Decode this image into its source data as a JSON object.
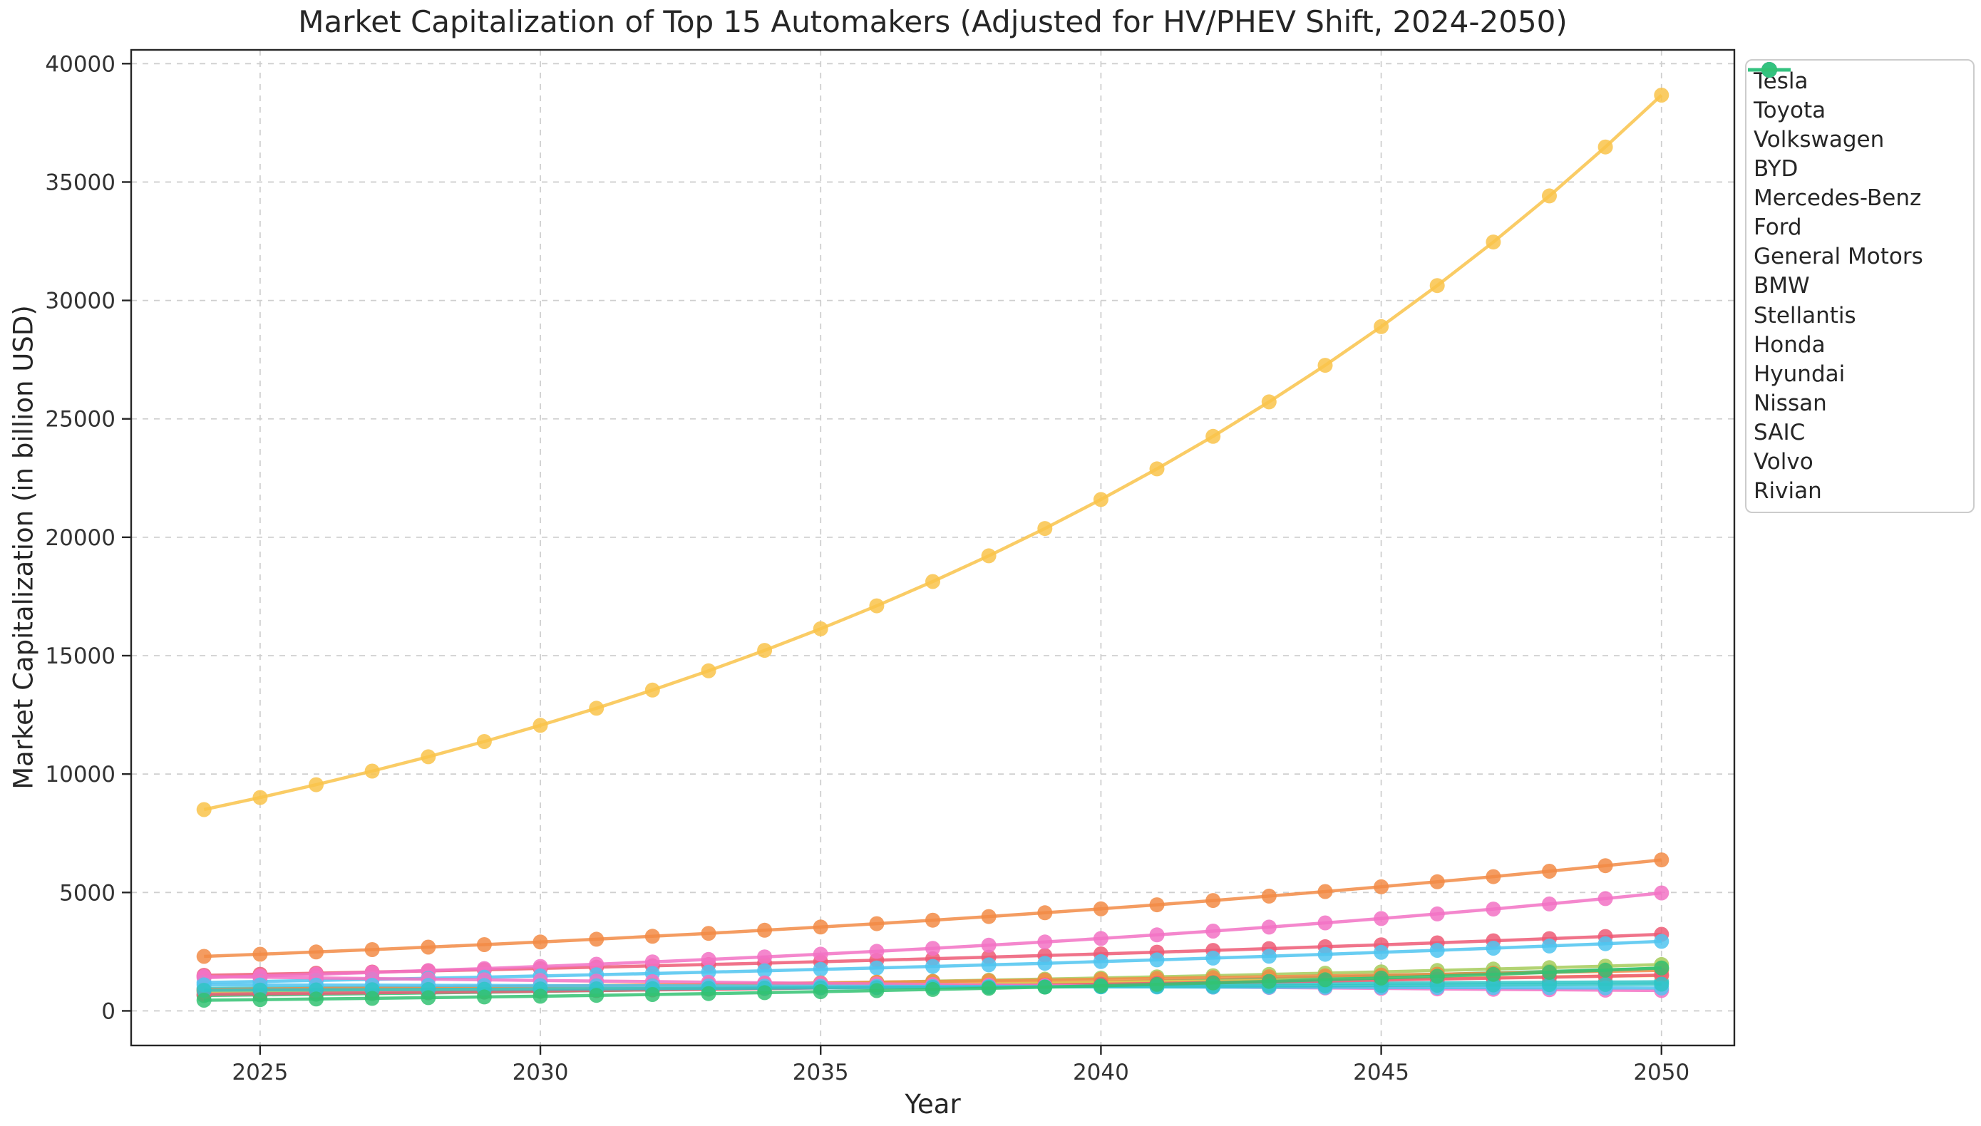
{
  "figure": {
    "title": "Market Capitalization of Top 15 Automakers (Adjusted for HV/PHEV Shift, 2024-2050)",
    "xlabel": "Year",
    "ylabel": "Market Capitalization (in billion USD)"
  },
  "chart_data": {
    "type": "line",
    "title": "Market Capitalization of Top 15 Automakers (Adjusted for HV/PHEV Shift, 2024-2050)",
    "xlabel": "Year",
    "ylabel": "Market Capitalization (in billion USD)",
    "grid": true,
    "grid_style": "dashed",
    "legend_position": "outside upper right",
    "marker": "circle",
    "x": [
      2024,
      2025,
      2026,
      2027,
      2028,
      2029,
      2030,
      2031,
      2032,
      2033,
      2034,
      2035,
      2036,
      2037,
      2038,
      2039,
      2040,
      2041,
      2042,
      2043,
      2044,
      2045,
      2046,
      2047,
      2048,
      2049,
      2050
    ],
    "xticks": [
      2025,
      2030,
      2035,
      2040,
      2045,
      2050
    ],
    "yticks": [
      0,
      5000,
      10000,
      15000,
      20000,
      25000,
      30000,
      35000,
      40000
    ],
    "xlim": [
      2022.7,
      2051.3
    ],
    "ylim": [
      -1461,
      40581
    ],
    "series": [
      {
        "name": "Tesla",
        "color": "#F9C34A",
        "values": [
          8500,
          9010,
          9551,
          10124,
          10731,
          11375,
          12057,
          12781,
          13548,
          14361,
          15222,
          16136,
          17104,
          18130,
          19218,
          20371,
          21593,
          22889,
          24262,
          25718,
          27261,
          28896,
          30630,
          32468,
          34416,
          36481,
          38670
        ]
      },
      {
        "name": "Toyota",
        "color": "#F28B45",
        "values": [
          2300,
          2392,
          2488,
          2587,
          2691,
          2798,
          2910,
          3027,
          3148,
          3274,
          3405,
          3541,
          3682,
          3830,
          3983,
          4142,
          4308,
          4480,
          4659,
          4846,
          5040,
          5241,
          5451,
          5669,
          5896,
          6131,
          6377
        ]
      },
      {
        "name": "Volkswagen",
        "color": "#ED5A76",
        "values": [
          1500,
          1545,
          1591,
          1639,
          1688,
          1739,
          1791,
          1845,
          1900,
          1957,
          2016,
          2076,
          2139,
          2203,
          2269,
          2337,
          2407,
          2479,
          2554,
          2630,
          2709,
          2790,
          2874,
          2960,
          3049,
          3141,
          3235
        ]
      },
      {
        "name": "BYD",
        "color": "#F272C4",
        "values": [
          1400,
          1470,
          1544,
          1621,
          1702,
          1787,
          1876,
          1970,
          2068,
          2172,
          2280,
          2394,
          2514,
          2640,
          2772,
          2910,
          3056,
          3209,
          3369,
          3538,
          3715,
          3900,
          4095,
          4300,
          4515,
          4741,
          4978
        ]
      },
      {
        "name": "Mercedes-Benz",
        "color": "#4FC4F0",
        "values": [
          1200,
          1242,
          1285,
          1330,
          1377,
          1425,
          1475,
          1527,
          1580,
          1635,
          1693,
          1752,
          1813,
          1877,
          1942,
          2010,
          2081,
          2153,
          2229,
          2307,
          2388,
          2471,
          2558,
          2647,
          2740,
          2836,
          2935
        ]
      },
      {
        "name": "Ford",
        "color": "#2FC4C6",
        "values": [
          950,
          960,
          969,
          979,
          989,
          998,
          1008,
          1019,
          1029,
          1039,
          1049,
          1060,
          1070,
          1081,
          1092,
          1103,
          1114,
          1125,
          1136,
          1148,
          1159,
          1171,
          1182,
          1194,
          1206,
          1218,
          1230
        ]
      },
      {
        "name": "General Motors",
        "color": "#33C272",
        "values": [
          650,
          676,
          703,
          731,
          760,
          791,
          822,
          855,
          890,
          925,
          962,
          1001,
          1041,
          1082,
          1126,
          1171,
          1217,
          1266,
          1317,
          1369,
          1424,
          1481,
          1540,
          1602,
          1666,
          1733,
          1802
        ]
      },
      {
        "name": "BMW",
        "color": "#A5CB59",
        "values": [
          800,
          828,
          857,
          887,
          918,
          950,
          983,
          1018,
          1053,
          1090,
          1128,
          1168,
          1209,
          1251,
          1295,
          1340,
          1387,
          1436,
          1486,
          1538,
          1592,
          1647,
          1705,
          1765,
          1826,
          1890,
          1957
        ]
      },
      {
        "name": "Stellantis",
        "color": "#F9C34A",
        "values": [
          850,
          869,
          888,
          907,
          927,
          948,
          969,
          990,
          1012,
          1034,
          1057,
          1080,
          1104,
          1128,
          1153,
          1178,
          1204,
          1231,
          1258,
          1285,
          1314,
          1343,
          1372,
          1402,
          1433,
          1465,
          1497
        ]
      },
      {
        "name": "Honda",
        "color": "#F28B45",
        "values": [
          900,
          923,
          946,
          969,
          993,
          1018,
          1044,
          1070,
          1097,
          1124,
          1152,
          1181,
          1210,
          1241,
          1272,
          1303,
          1336,
          1369,
          1404,
          1439,
          1475,
          1512,
          1549,
          1588,
          1628,
          1669,
          1710
        ]
      },
      {
        "name": "Hyundai",
        "color": "#ED5A76",
        "values": [
          700,
          721,
          743,
          765,
          788,
          811,
          836,
          861,
          887,
          913,
          941,
          969,
          998,
          1028,
          1059,
          1091,
          1123,
          1157,
          1192,
          1227,
          1264,
          1302,
          1341,
          1382,
          1423,
          1466,
          1510
        ]
      },
      {
        "name": "Nissan",
        "color": "#F272C4",
        "values": [
          1450,
          1421,
          1393,
          1365,
          1337,
          1311,
          1284,
          1259,
          1234,
          1209,
          1185,
          1161,
          1138,
          1115,
          1093,
          1071,
          1049,
          1029,
          1008,
          988,
          968,
          949,
          930,
          911,
          893,
          875,
          858
        ]
      },
      {
        "name": "SAIC",
        "color": "#4FC4F0",
        "values": [
          1100,
          1095,
          1089,
          1084,
          1078,
          1073,
          1067,
          1062,
          1057,
          1052,
          1046,
          1041,
          1036,
          1031,
          1025,
          1020,
          1015,
          1010,
          1005,
          1000,
          995,
          990,
          985,
          980,
          975,
          970,
          966
        ]
      },
      {
        "name": "Volvo",
        "color": "#2FC4C6",
        "values": [
          870,
          879,
          887,
          896,
          905,
          914,
          924,
          933,
          942,
          952,
          961,
          971,
          980,
          990,
          1000,
          1010,
          1020,
          1030,
          1041,
          1051,
          1062,
          1072,
          1083,
          1094,
          1105,
          1116,
          1127
        ]
      },
      {
        "name": "Rivian",
        "color": "#33C272",
        "values": [
          450,
          475,
          501,
          528,
          557,
          588,
          620,
          655,
          691,
          729,
          769,
          811,
          856,
          903,
          952,
          1005,
          1060,
          1118,
          1180,
          1244,
          1313,
          1385,
          1461,
          1542,
          1627,
          1716,
          1810
        ]
      }
    ]
  }
}
